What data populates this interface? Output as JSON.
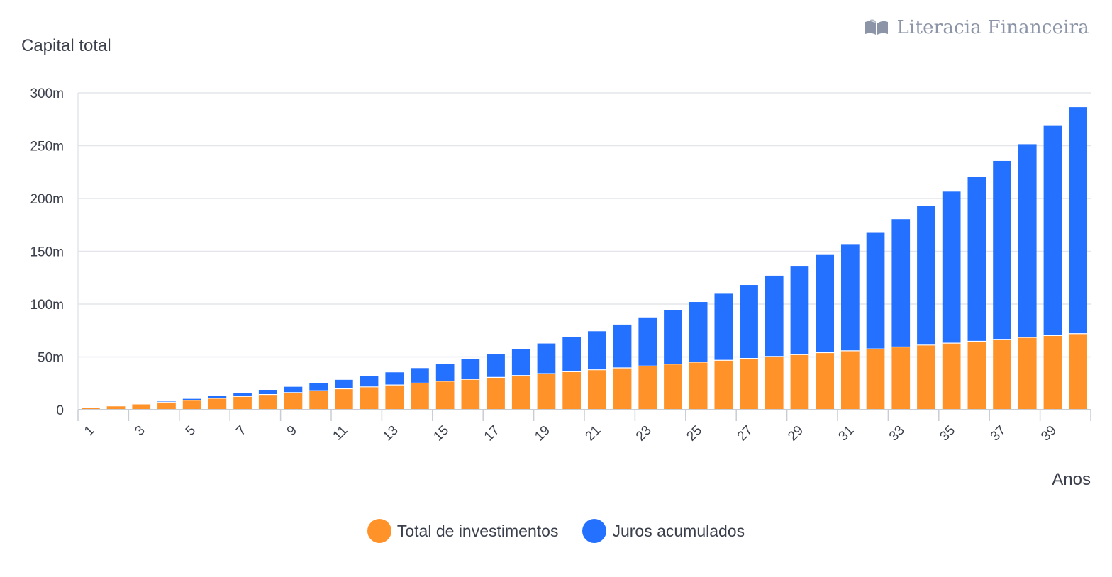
{
  "brand": {
    "name": "Literacia Financeira",
    "icon": "book-icon",
    "color": "#8c95a8"
  },
  "colors": {
    "invest": "#ff9229",
    "juros": "#2471ff",
    "grid": "#e3e5ea",
    "axis": "#c9ccd3",
    "text": "#3a3f4b"
  },
  "chart_data": {
    "type": "bar",
    "stacked": true,
    "ylabel": "Capital total",
    "xlabel": "Anos",
    "ylim": [
      0,
      300
    ],
    "yticks": [
      "0",
      "50m",
      "100m",
      "150m",
      "200m",
      "250m",
      "300m"
    ],
    "ytick_values": [
      0,
      50,
      100,
      150,
      200,
      250,
      300
    ],
    "categories": [
      1,
      2,
      3,
      4,
      5,
      6,
      7,
      8,
      9,
      10,
      11,
      12,
      13,
      14,
      15,
      16,
      17,
      18,
      19,
      20,
      21,
      22,
      23,
      24,
      25,
      26,
      27,
      28,
      29,
      30,
      31,
      32,
      33,
      34,
      35,
      36,
      37,
      38,
      39,
      40
    ],
    "xtick_labels": [
      "1",
      "3",
      "5",
      "7",
      "9",
      "11",
      "13",
      "15",
      "17",
      "19",
      "21",
      "23",
      "25",
      "27",
      "29",
      "31",
      "33",
      "35",
      "37",
      "39"
    ],
    "xtick_values": [
      1,
      3,
      5,
      7,
      9,
      11,
      13,
      15,
      17,
      19,
      21,
      23,
      25,
      27,
      29,
      31,
      33,
      35,
      37,
      39
    ],
    "series": [
      {
        "name": "Total de investimentos",
        "values": [
          1.8,
          3.6,
          5.4,
          7.2,
          9.0,
          10.8,
          12.6,
          14.4,
          16.2,
          18.0,
          19.8,
          21.6,
          23.4,
          25.2,
          27.0,
          28.8,
          30.6,
          32.4,
          34.2,
          36.0,
          37.8,
          39.6,
          41.4,
          43.2,
          45.0,
          46.8,
          48.6,
          50.4,
          52.2,
          54.0,
          55.8,
          57.6,
          59.4,
          61.2,
          63.0,
          64.8,
          66.6,
          68.4,
          70.2,
          72.0
        ]
      },
      {
        "name": "Juros acumulados",
        "values": [
          0.0,
          0.1,
          0.3,
          0.8,
          1.3,
          2.2,
          3.2,
          4.4,
          5.5,
          7.0,
          8.5,
          10.4,
          12.0,
          14.2,
          16.5,
          19.0,
          22.2,
          25.0,
          28.5,
          32.5,
          36.5,
          41.0,
          46.0,
          51.2,
          57.0,
          63.0,
          69.5,
          76.5,
          84.0,
          92.5,
          101.0,
          110.5,
          121.0,
          131.5,
          143.5,
          156.0,
          169.0,
          183.0,
          198.5,
          214.5
        ]
      }
    ]
  }
}
